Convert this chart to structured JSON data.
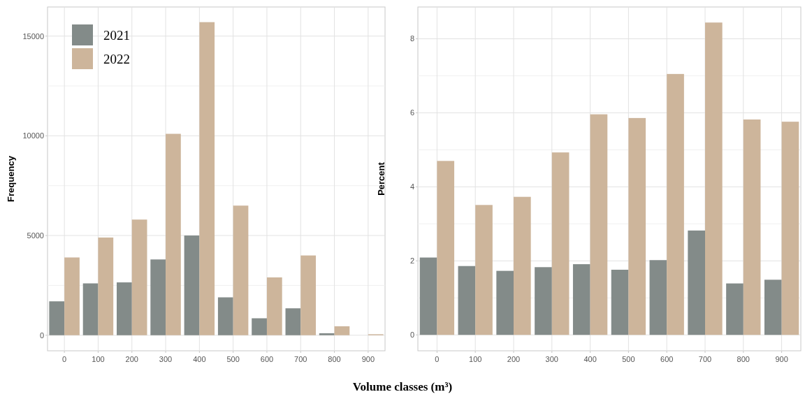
{
  "chart_data": [
    {
      "type": "bar",
      "categories": [
        "0",
        "100",
        "200",
        "300",
        "400",
        "500",
        "600",
        "700",
        "800",
        "900"
      ],
      "xlabel": "Volume classes (m³)",
      "ylabel": "Frequency",
      "series": [
        {
          "name": "2021",
          "color": "#838b89",
          "values": [
            1700,
            2600,
            2650,
            3800,
            5000,
            1900,
            850,
            1350,
            100,
            null
          ]
        },
        {
          "name": "2022",
          "color": "#cdb59b",
          "values": [
            3900,
            4900,
            5800,
            10100,
            15700,
            6500,
            2900,
            4000,
            450,
            50
          ]
        }
      ],
      "ylim": [
        -780,
        16460
      ],
      "yticks": [
        0,
        {
          "value": 2500,
          "label": null
        },
        5000,
        {
          "value": 7500,
          "label": null
        },
        10000,
        {
          "value": 12500,
          "label": null
        },
        15000
      ],
      "grid": true,
      "legend": "top left"
    },
    {
      "type": "bar",
      "categories": [
        "0",
        "100",
        "200",
        "300",
        "400",
        "500",
        "600",
        "700",
        "800",
        "900"
      ],
      "ylabel": "Percent",
      "series": [
        {
          "color": "#838b89",
          "values": [
            2.09,
            1.86,
            1.73,
            1.83,
            1.91,
            1.76,
            2.02,
            2.82,
            1.39,
            1.49
          ]
        },
        {
          "color": "#cdb59b",
          "values": [
            4.7,
            3.51,
            3.73,
            4.93,
            5.96,
            5.86,
            7.05,
            8.44,
            5.82,
            5.76
          ]
        }
      ],
      "ylim": [
        -0.43,
        8.86
      ],
      "yticks": [
        0,
        {
          "value": 1,
          "label": null
        },
        2,
        {
          "value": 3,
          "label": null
        },
        4,
        {
          "value": 5,
          "label": null
        },
        6,
        {
          "value": 7,
          "label": null
        },
        8
      ],
      "grid": true,
      "legend": false
    }
  ]
}
